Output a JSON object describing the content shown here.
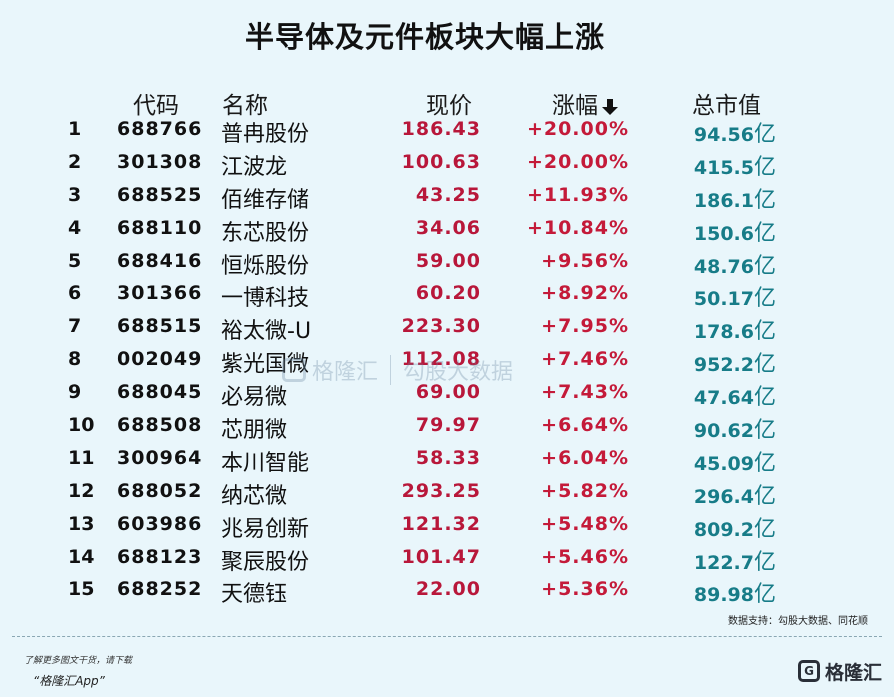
{
  "title": "半导体及元件板块大幅上涨",
  "headers": {
    "code": "代码",
    "name": "名称",
    "price": "现价",
    "change": "涨幅",
    "cap": "总市值"
  },
  "sort": {
    "column": "change",
    "direction": "down",
    "icon": "down-arrow-icon"
  },
  "cap_unit": "亿",
  "rows": [
    {
      "rank": "1",
      "code": "688766",
      "name": "普冉股份",
      "price": "186.43",
      "change": "+20.00%",
      "cap": "94.56"
    },
    {
      "rank": "2",
      "code": "301308",
      "name": "江波龙",
      "price": "100.63",
      "change": "+20.00%",
      "cap": "415.5"
    },
    {
      "rank": "3",
      "code": "688525",
      "name": "佰维存储",
      "price": "43.25",
      "change": "+11.93%",
      "cap": "186.1"
    },
    {
      "rank": "4",
      "code": "688110",
      "name": "东芯股份",
      "price": "34.06",
      "change": "+10.84%",
      "cap": "150.6"
    },
    {
      "rank": "5",
      "code": "688416",
      "name": "恒烁股份",
      "price": "59.00",
      "change": "+9.56%",
      "cap": "48.76"
    },
    {
      "rank": "6",
      "code": "301366",
      "name": "一博科技",
      "price": "60.20",
      "change": "+8.92%",
      "cap": "50.17"
    },
    {
      "rank": "7",
      "code": "688515",
      "name": "裕太微-U",
      "price": "223.30",
      "change": "+7.95%",
      "cap": "178.6"
    },
    {
      "rank": "8",
      "code": "002049",
      "name": "紫光国微",
      "price": "112.08",
      "change": "+7.46%",
      "cap": "952.2"
    },
    {
      "rank": "9",
      "code": "688045",
      "name": "必易微",
      "price": "69.00",
      "change": "+7.43%",
      "cap": "47.64"
    },
    {
      "rank": "10",
      "code": "688508",
      "name": "芯朋微",
      "price": "79.97",
      "change": "+6.64%",
      "cap": "90.62"
    },
    {
      "rank": "11",
      "code": "300964",
      "name": "本川智能",
      "price": "58.33",
      "change": "+6.04%",
      "cap": "45.09"
    },
    {
      "rank": "12",
      "code": "688052",
      "name": "纳芯微",
      "price": "293.25",
      "change": "+5.82%",
      "cap": "296.4"
    },
    {
      "rank": "13",
      "code": "603986",
      "name": "兆易创新",
      "price": "121.32",
      "change": "+5.48%",
      "cap": "809.2"
    },
    {
      "rank": "14",
      "code": "688123",
      "name": "聚辰股份",
      "price": "101.47",
      "change": "+5.46%",
      "cap": "122.7"
    },
    {
      "rank": "15",
      "code": "688252",
      "name": "天德钰",
      "price": "22.00",
      "change": "+5.36%",
      "cap": "89.98"
    }
  ],
  "source": "数据支持：勾股大数据、同花顺",
  "footer": {
    "line1": "了解更多图文干货，请下载",
    "line2": "“格隆汇App”"
  },
  "logo": {
    "mark": "G",
    "text": "格隆汇"
  },
  "watermark": {
    "left": "格隆汇",
    "right": "勾股大数据"
  },
  "colors": {
    "background": "#e9f6fb",
    "price": "#b8173a",
    "change": "#c41a39",
    "cap": "#177c88"
  }
}
